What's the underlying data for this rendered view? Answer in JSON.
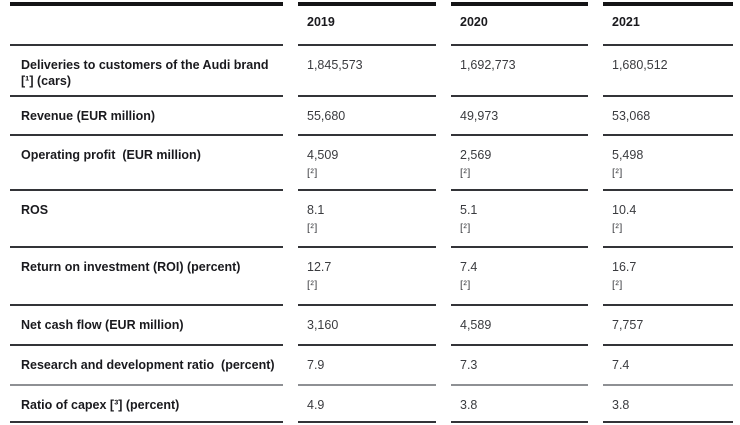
{
  "table": {
    "corner_label": "",
    "years": [
      "2019",
      "2020",
      "2021"
    ],
    "rows": [
      {
        "label": "Deliveries to customers of the Audi brand [¹] (cars)",
        "values": [
          "1,845,573",
          "1,692,773",
          "1,680,512"
        ],
        "footnote": ""
      },
      {
        "label": "Revenue (EUR million)",
        "values": [
          "55,680",
          "49,973",
          "53,068"
        ],
        "footnote": ""
      },
      {
        "label": "Operating profit  (EUR million)",
        "values": [
          "4,509",
          "2,569",
          "5,498"
        ],
        "footnote": "[²]"
      },
      {
        "label": "ROS",
        "values": [
          "8.1",
          "5.1",
          "10.4"
        ],
        "footnote": "[²]"
      },
      {
        "label": "Return on investment (ROI) (percent)",
        "values": [
          "12.7",
          "7.4",
          "16.7"
        ],
        "footnote": "[²]"
      },
      {
        "label": "Net cash flow (EUR million)",
        "values": [
          "3,160",
          "4,589",
          "7,757"
        ],
        "footnote": ""
      },
      {
        "label": "Research and development ratio  (percent)",
        "values": [
          "7.9",
          "7.3",
          "7.4"
        ],
        "footnote": ""
      },
      {
        "label": "Ratio of capex [³] (percent)",
        "values": [
          "4.9",
          "3.8",
          "3.8"
        ],
        "footnote": ""
      }
    ],
    "colors": {
      "top_border": "#141416",
      "row_separator": "#333438",
      "light_separator": "#8e9094",
      "label_text": "#1a1a1e",
      "value_text": "#3a3b3f",
      "background": "#ffffff"
    }
  }
}
